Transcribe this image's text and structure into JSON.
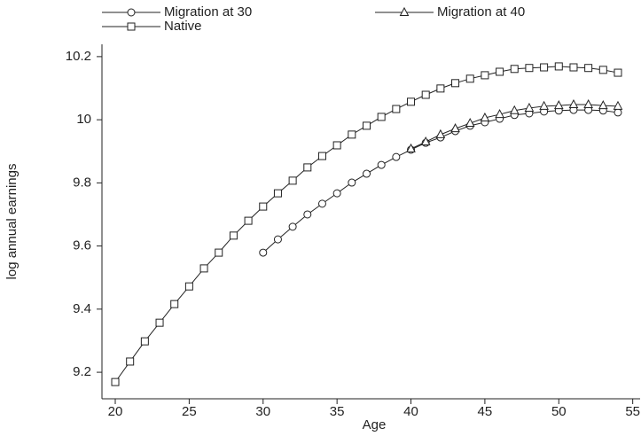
{
  "chart_data": {
    "type": "line",
    "x_label": "Age",
    "y_label": "log annual earnings",
    "x": [
      20,
      21,
      22,
      23,
      24,
      25,
      26,
      27,
      28,
      29,
      30,
      31,
      32,
      33,
      34,
      35,
      36,
      37,
      38,
      39,
      40,
      41,
      42,
      43,
      44,
      45,
      46,
      47,
      48,
      49,
      50,
      51,
      52,
      53,
      54
    ],
    "series": [
      {
        "name": "Migration at 30",
        "color": "#222222",
        "marker": "circle",
        "values": [
          null,
          null,
          null,
          null,
          null,
          null,
          null,
          null,
          null,
          null,
          9.579,
          9.621,
          9.661,
          9.7,
          9.734,
          9.767,
          9.801,
          9.829,
          9.857,
          9.882,
          9.905,
          9.927,
          9.944,
          9.964,
          9.981,
          9.992,
          10.003,
          10.015,
          10.02,
          10.026,
          10.029,
          10.031,
          10.031,
          10.029,
          10.023
        ]
      },
      {
        "name": "Migration at 40",
        "color": "#222222",
        "marker": "triangle",
        "values": [
          null,
          null,
          null,
          null,
          null,
          null,
          null,
          null,
          null,
          null,
          null,
          null,
          null,
          null,
          null,
          null,
          null,
          null,
          null,
          null,
          9.908,
          9.93,
          9.953,
          9.972,
          9.989,
          10.006,
          10.017,
          10.029,
          10.037,
          10.043,
          10.045,
          10.048,
          10.048,
          10.045,
          10.043
        ]
      },
      {
        "name": "Native",
        "color": "#222222",
        "marker": "square",
        "values": [
          9.169,
          9.234,
          9.298,
          9.357,
          9.416,
          9.472,
          9.529,
          9.579,
          9.633,
          9.68,
          9.725,
          9.767,
          9.807,
          9.849,
          9.885,
          9.919,
          9.953,
          9.981,
          10.009,
          10.034,
          10.057,
          10.079,
          10.099,
          10.116,
          10.13,
          10.141,
          10.152,
          10.161,
          10.164,
          10.166,
          10.169,
          10.166,
          10.164,
          10.158,
          10.149
        ]
      }
    ],
    "xlim": [
      19.1,
      55.5
    ],
    "xticks": [
      20,
      25,
      30,
      35,
      40,
      45,
      50,
      55
    ],
    "ylim": [
      9.116,
      10.239
    ],
    "yticks": [
      9.2,
      9.4,
      9.6,
      9.8,
      10,
      10.2
    ],
    "grid": false,
    "legend": "top"
  }
}
